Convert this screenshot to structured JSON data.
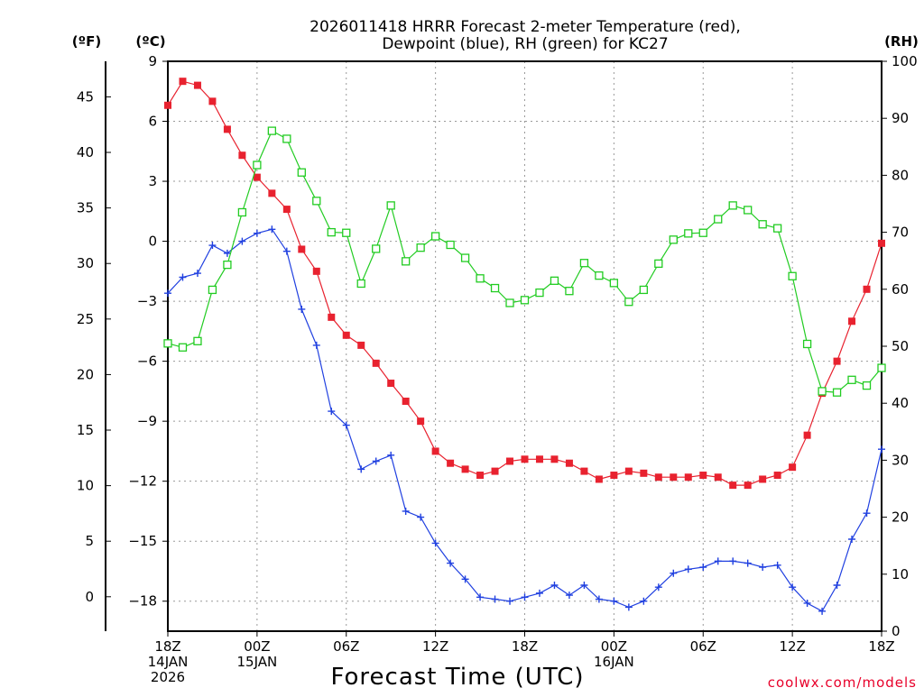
{
  "chart_data": {
    "type": "line",
    "title_lines": [
      "2026011418 HRRR Forecast 2-meter Temperature (red),",
      "Dewpoint (blue), RH (green) for KC27"
    ],
    "xlabel": "Forecast Time (UTC)",
    "watermark": "coolwx.com/models",
    "units": {
      "left_outer": "(ºF)",
      "left_inner": "(ºC)",
      "right": "(RH)"
    },
    "x_range_hours": [
      0,
      48
    ],
    "x_ticks": [
      {
        "h": 0,
        "lines": [
          "18Z",
          "14JAN",
          "2026"
        ]
      },
      {
        "h": 6,
        "lines": [
          "00Z",
          "15JAN"
        ]
      },
      {
        "h": 12,
        "lines": [
          "06Z"
        ]
      },
      {
        "h": 18,
        "lines": [
          "12Z"
        ]
      },
      {
        "h": 24,
        "lines": [
          "18Z"
        ]
      },
      {
        "h": 30,
        "lines": [
          "00Z",
          "16JAN"
        ]
      },
      {
        "h": 36,
        "lines": [
          "06Z"
        ]
      },
      {
        "h": 42,
        "lines": [
          "12Z"
        ]
      },
      {
        "h": 48,
        "lines": [
          "18Z"
        ]
      }
    ],
    "celsius_axis": {
      "range": [
        -19.5,
        9
      ],
      "ticks": [
        9,
        6,
        3,
        0,
        -3,
        -6,
        -9,
        -12,
        -15,
        -18
      ]
    },
    "fahrenheit_ticks": [
      45,
      40,
      35,
      30,
      25,
      20,
      15,
      10,
      5,
      0
    ],
    "rh_axis": {
      "range": [
        0,
        100
      ],
      "ticks": [
        100,
        90,
        80,
        70,
        60,
        50,
        40,
        30,
        20,
        10,
        0
      ]
    },
    "grid": true,
    "series": [
      {
        "name": "Temperature",
        "axis": "celsius",
        "color": "#e8222f",
        "marker": "filled-square",
        "values": [
          6.8,
          8.0,
          7.8,
          7.0,
          5.6,
          4.3,
          3.2,
          2.4,
          1.6,
          -0.4,
          -1.5,
          -3.8,
          -4.7,
          -5.2,
          -6.1,
          -7.1,
          -8.0,
          -9.0,
          -10.5,
          -11.1,
          -11.4,
          -11.7,
          -11.5,
          -11.0,
          -10.9,
          -10.9,
          -10.9,
          -11.1,
          -11.5,
          -11.9,
          -11.7,
          -11.5,
          -11.6,
          -11.8,
          -11.8,
          -11.8,
          -11.7,
          -11.8,
          -12.2,
          -12.2,
          -11.9,
          -11.7,
          -11.3,
          -9.7,
          -7.6,
          -6.0,
          -4.0,
          -2.4,
          -0.1
        ]
      },
      {
        "name": "Dewpoint",
        "axis": "celsius",
        "color": "#2040e0",
        "marker": "plus",
        "values": [
          -2.6,
          -1.8,
          -1.6,
          -0.2,
          -0.6,
          0.0,
          0.4,
          0.6,
          -0.5,
          -3.4,
          -5.2,
          -8.5,
          -9.2,
          -11.4,
          -11.0,
          -10.7,
          -13.5,
          -13.8,
          -15.1,
          -16.1,
          -16.9,
          -17.8,
          -17.9,
          -18.0,
          -17.8,
          -17.6,
          -17.2,
          -17.7,
          -17.2,
          -17.9,
          -18.0,
          -18.3,
          -18.0,
          -17.3,
          -16.6,
          -16.4,
          -16.3,
          -16.0,
          -16.0,
          -16.1,
          -16.3,
          -16.2,
          -17.3,
          -18.1,
          -18.5,
          -17.2,
          -14.9,
          -13.6,
          -10.4
        ]
      },
      {
        "name": "RH",
        "axis": "rh",
        "color": "#22cc22",
        "marker": "open-square",
        "values": [
          50.5,
          49.8,
          50.9,
          59.9,
          64.3,
          73.5,
          81.8,
          87.8,
          86.4,
          80.5,
          75.5,
          70.0,
          69.9,
          61.0,
          67.1,
          74.7,
          64.9,
          67.3,
          69.3,
          67.8,
          65.5,
          61.9,
          60.2,
          57.6,
          58.1,
          59.4,
          61.5,
          59.7,
          64.6,
          62.4,
          61.1,
          57.8,
          59.9,
          64.5,
          68.7,
          69.8,
          69.9,
          72.3,
          74.7,
          73.9,
          71.4,
          70.7,
          62.3,
          50.4,
          42.1,
          41.9,
          44.1,
          43.1,
          46.2
        ]
      }
    ]
  }
}
